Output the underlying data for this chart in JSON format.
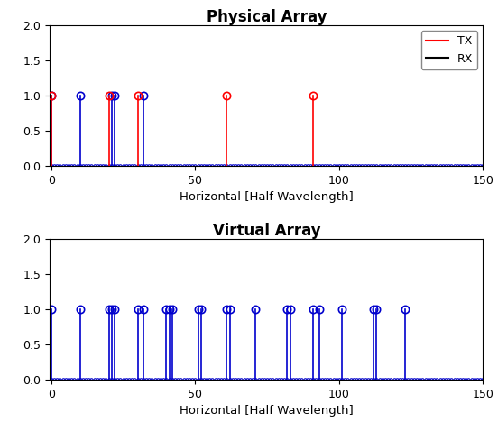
{
  "title1": "Physical Array",
  "title2": "Virtual Array",
  "xlabel": "Horizontal [Half Wavelength]",
  "xlim": [
    -0.5,
    150
  ],
  "ylim": [
    0,
    2
  ],
  "yticks": [
    0,
    0.5,
    1,
    1.5,
    2
  ],
  "tx_positions": [
    0,
    20,
    30,
    61,
    91
  ],
  "rx_positions": [
    0,
    10,
    21,
    22,
    32
  ],
  "tx_color": "#FF0000",
  "rx_color": "#0000CD",
  "virtual_color": "#0000CD",
  "legend_tx_label": "TX",
  "legend_rx_label": "RX",
  "markersize": 6,
  "dot_markersize": 2.5,
  "linewidth": 1.2,
  "figsize": [
    5.52,
    4.68
  ],
  "dpi": 100
}
